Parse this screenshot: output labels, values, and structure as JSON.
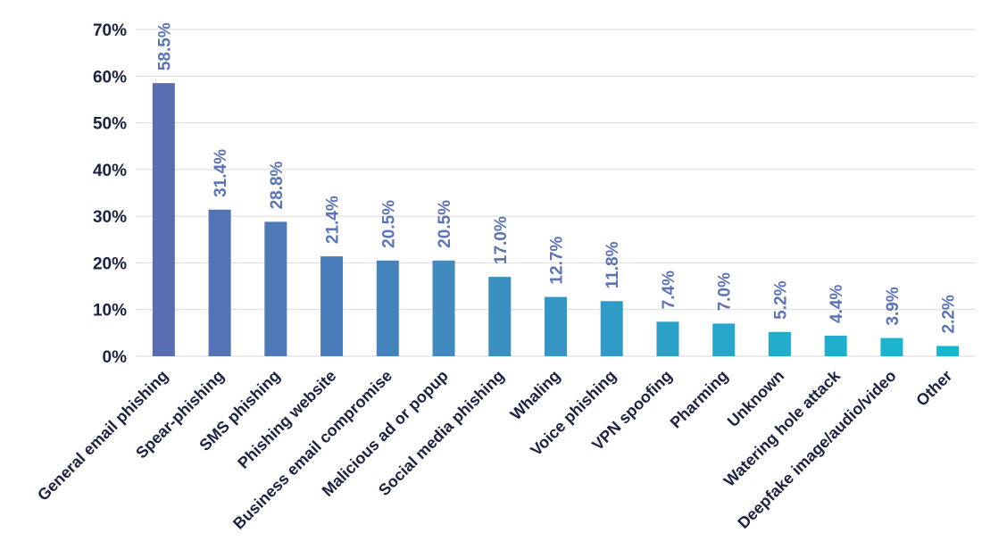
{
  "chart_data": {
    "type": "bar",
    "categories": [
      "General email phishing",
      "Spear-phishing",
      "SMS phishing",
      "Phishing website",
      "Business email compromise",
      "Malicious ad or popup",
      "Social media phishing",
      "Whaling",
      "Voice phishing",
      "VPN spoofing",
      "Pharming",
      "Unknown",
      "Watering hole attack",
      "Deepfake image/audio/video",
      "Other"
    ],
    "values": [
      58.5,
      31.4,
      28.8,
      21.4,
      20.5,
      20.5,
      17.0,
      12.7,
      11.8,
      7.4,
      7.0,
      5.2,
      4.4,
      3.9,
      2.2
    ],
    "data_labels": [
      "58.5%",
      "31.4%",
      "28.8%",
      "21.4%",
      "20.5%",
      "20.5%",
      "17.0%",
      "12.7%",
      "11.8%",
      "7.4%",
      "7.0%",
      "5.2%",
      "4.4%",
      "3.9%",
      "2.2%"
    ],
    "y_ticks": [
      "0%",
      "10%",
      "20%",
      "30%",
      "40%",
      "50%",
      "60%",
      "70%"
    ],
    "ylim": [
      0,
      70
    ],
    "grid": true,
    "bar_colors": [
      "#5a6db3",
      "#5472b6",
      "#4e78b8",
      "#4a7dbb",
      "#4583bd",
      "#408ac0",
      "#3b90c2",
      "#3595c4",
      "#309bc6",
      "#2ba1c8",
      "#27a6ca",
      "#22abcb",
      "#1fafcc",
      "#1cb3ce",
      "#1ab6cf"
    ],
    "label_color": "#5b73b8",
    "text_color": "#1b2140"
  }
}
